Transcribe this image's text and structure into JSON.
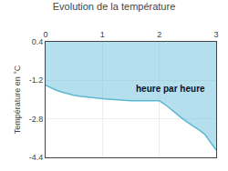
{
  "chart_data": {
    "type": "area",
    "title": "Evolution de la température",
    "ylabel": "Température en °C",
    "annotations": [
      {
        "text": "heure par heure",
        "x": 1.55,
        "y": -1.25
      }
    ],
    "x": [
      0,
      0.1,
      0.2,
      0.3,
      0.4,
      0.5,
      0.6,
      0.7,
      0.8,
      0.9,
      1.0,
      1.1,
      1.2,
      1.3,
      1.4,
      1.5,
      1.6,
      1.7,
      1.8,
      1.9,
      2.0,
      2.1,
      2.2,
      2.3,
      2.4,
      2.5,
      2.6,
      2.7,
      2.8,
      2.9,
      3.0
    ],
    "values": [
      -1.4,
      -1.52,
      -1.62,
      -1.7,
      -1.77,
      -1.82,
      -1.86,
      -1.89,
      -1.92,
      -1.94,
      -1.96,
      -1.98,
      -2.0,
      -2.02,
      -2.04,
      -2.05,
      -2.05,
      -2.05,
      -2.05,
      -2.05,
      -2.05,
      -2.2,
      -2.4,
      -2.6,
      -2.78,
      -2.95,
      -3.1,
      -3.26,
      -3.44,
      -3.78,
      -4.1
    ],
    "color": "#5bb8d4",
    "xlim": [
      0,
      3
    ],
    "ylim": [
      -4.4,
      0.4
    ],
    "xticks": [
      0,
      1,
      2,
      3
    ],
    "yticks": [
      0.4,
      -1.2,
      -2.8,
      -4.4
    ],
    "grid": true
  }
}
